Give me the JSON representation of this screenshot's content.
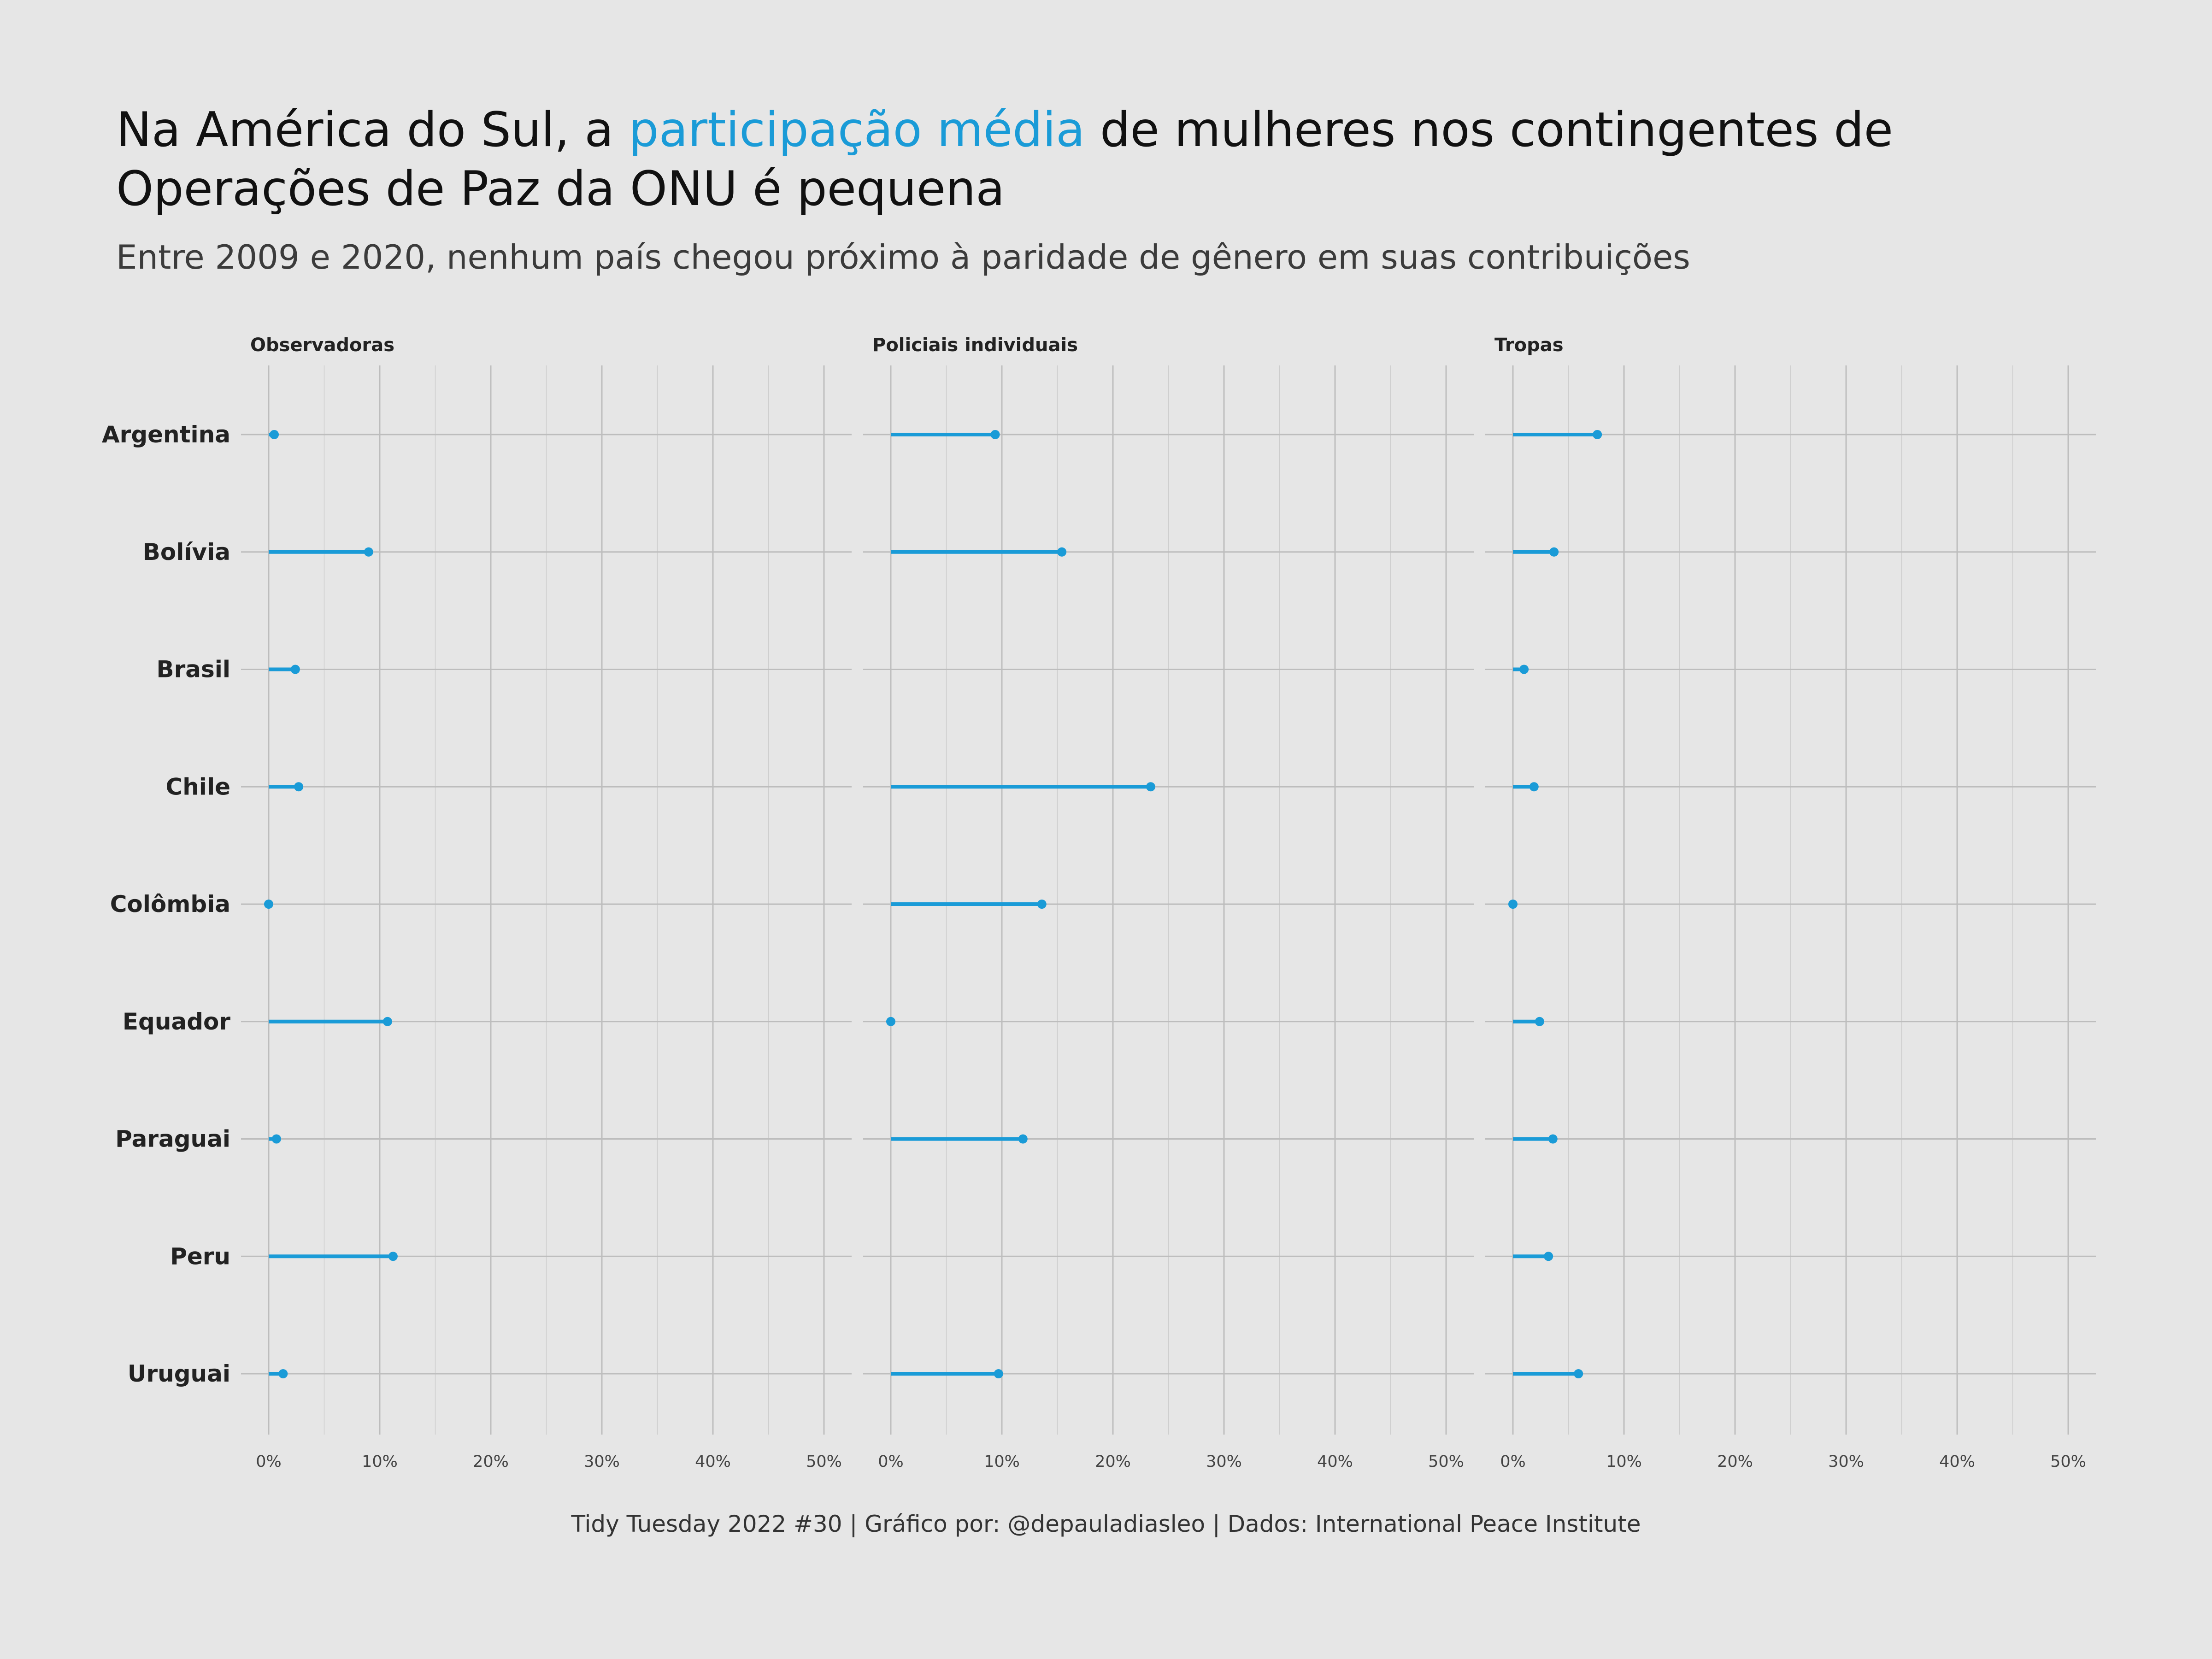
{
  "title": {
    "before": "Na América do Sul, a ",
    "highlight": "participação média",
    "after": " de mulheres nos contingentes de",
    "line2": "Operações de Paz da ONU é pequena"
  },
  "subtitle": "Entre 2009 e 2020, nenhum país chegou próximo à paridade de gênero em suas contribuições",
  "caption": "Tidy Tuesday 2022 #30 | Gráfico por: @depauladiasleo | Dados: International Peace Institute",
  "colors": {
    "accent": "#1a9bd7",
    "background": "#e6e6e6",
    "grid": "#bdbdbd"
  },
  "chart_data": {
    "type": "lollipop",
    "xlim": [
      0,
      50
    ],
    "xticks": [
      0,
      10,
      20,
      30,
      40,
      50
    ],
    "xtick_labels": [
      "0%",
      "10%",
      "20%",
      "30%",
      "40%",
      "50%"
    ],
    "categories": [
      "Argentina",
      "Bolívia",
      "Brasil",
      "Chile",
      "Colômbia",
      "Equador",
      "Paraguai",
      "Peru",
      "Uruguai"
    ],
    "grid": true,
    "facets": [
      {
        "name": "Observadoras",
        "values": [
          0.5,
          9.0,
          2.4,
          2.7,
          0.0,
          10.7,
          0.7,
          11.2,
          1.3
        ]
      },
      {
        "name": "Policiais individuais",
        "values": [
          9.4,
          15.4,
          null,
          23.4,
          13.6,
          0.0,
          11.9,
          null,
          9.7
        ]
      },
      {
        "name": "Tropas",
        "values": [
          7.6,
          3.7,
          1.0,
          1.9,
          0.0,
          2.4,
          3.6,
          3.2,
          5.9
        ]
      }
    ]
  }
}
